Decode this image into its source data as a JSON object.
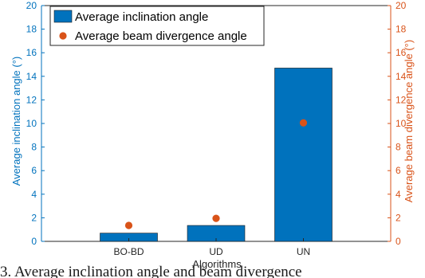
{
  "chart_data": {
    "type": "bar",
    "categories": [
      "BO-BD",
      "UD",
      "UN"
    ],
    "series": [
      {
        "name": "Average inclination angle",
        "values": [
          0.7,
          1.35,
          14.7
        ],
        "axis": "left",
        "render": "bar",
        "color": "#0072BD"
      },
      {
        "name": "Average beam divergence angle",
        "values": [
          1.35,
          1.95,
          10.05
        ],
        "axis": "right",
        "render": "marker",
        "color": "#D95319"
      }
    ],
    "xlabel": "Algorithms",
    "ylabel_left": "Average inclination angle (°)",
    "ylabel_right": "Average beam divergence angle (°)",
    "ylim_left": [
      0,
      20
    ],
    "ylim_right": [
      0,
      20
    ],
    "yticks_left": [
      0,
      2,
      4,
      6,
      8,
      10,
      12,
      14,
      16,
      18,
      20
    ],
    "yticks_right": [
      0,
      2,
      4,
      6,
      8,
      10,
      12,
      14,
      16,
      18,
      20
    ],
    "grid": false,
    "legend_position": "top-left",
    "axis_colors": {
      "left": "#0072BD",
      "right": "#D95319",
      "x": "#262626"
    }
  },
  "caption_fragment": "3. Average inclination angle and beam divergence"
}
